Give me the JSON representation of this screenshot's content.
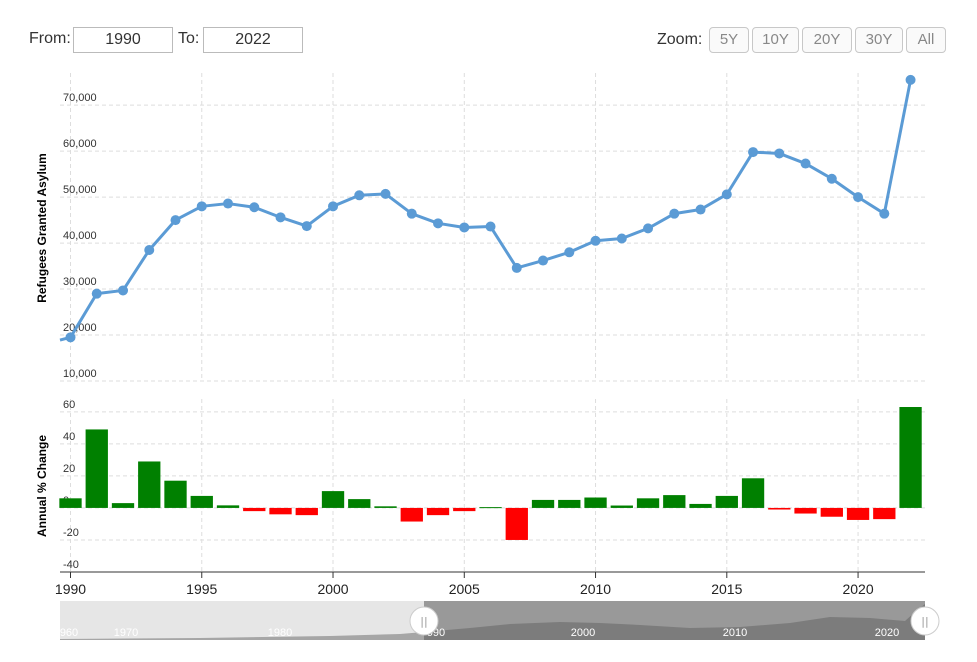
{
  "controls": {
    "from_label": "From:",
    "from_value": "1990",
    "to_label": "To:",
    "to_value": "2022",
    "zoom_label": "Zoom:",
    "zoom_buttons": [
      "5Y",
      "10Y",
      "20Y",
      "30Y",
      "All"
    ]
  },
  "colors": {
    "line": "#5b9bd5",
    "positive_bar": "#008000",
    "negative_bar": "#ff0000",
    "grid": "#dddddd"
  },
  "chart_data": [
    {
      "type": "line",
      "ylabel": "Refugees Granted Asylum",
      "y_ticks": [
        "10,000",
        "20,000",
        "30,000",
        "40,000",
        "50,000",
        "60,000",
        "70,000"
      ],
      "ylim": [
        10000,
        77000
      ],
      "x": [
        1990,
        1991,
        1992,
        1993,
        1994,
        1995,
        1996,
        1997,
        1998,
        1999,
        2000,
        2001,
        2002,
        2003,
        2004,
        2005,
        2006,
        2007,
        2008,
        2009,
        2010,
        2011,
        2012,
        2013,
        2014,
        2015,
        2016,
        2017,
        2018,
        2019,
        2020,
        2021,
        2022
      ],
      "values": [
        19500,
        29000,
        29700,
        38500,
        45000,
        48000,
        48600,
        47800,
        45600,
        43700,
        48000,
        50400,
        50700,
        46400,
        44300,
        43400,
        43600,
        34600,
        36200,
        38000,
        40500,
        41000,
        43200,
        46400,
        47300,
        50600,
        59800,
        59500,
        57300,
        54000,
        50000,
        46400,
        75500
      ],
      "grid": true
    },
    {
      "type": "bar",
      "ylabel": "Annual % Change",
      "y_ticks": [
        "-40",
        "-20",
        "0",
        "20",
        "40",
        "60"
      ],
      "ylim": [
        -40,
        68
      ],
      "x": [
        1990,
        1991,
        1992,
        1993,
        1994,
        1995,
        1996,
        1997,
        1998,
        1999,
        2000,
        2001,
        2002,
        2003,
        2004,
        2005,
        2006,
        2007,
        2008,
        2009,
        2010,
        2011,
        2012,
        2013,
        2014,
        2015,
        2016,
        2017,
        2018,
        2019,
        2020,
        2021,
        2022
      ],
      "values": [
        6,
        49,
        3,
        29,
        17,
        7.5,
        1.6,
        -2,
        -4,
        -4.5,
        10.5,
        5.5,
        1,
        -8.5,
        -4.5,
        -2,
        0.5,
        -20,
        5,
        5,
        6.5,
        1.5,
        6,
        8,
        2.5,
        7.5,
        18.5,
        -1,
        -3.5,
        -5.5,
        -7.5,
        -7,
        63
      ],
      "grid": true
    }
  ],
  "x_axis": {
    "tick_values": [
      1990,
      1995,
      2000,
      2005,
      2010,
      2015,
      2020
    ],
    "tick_labels": [
      "1990",
      "1995",
      "2000",
      "2005",
      "2010",
      "2015",
      "2020"
    ]
  },
  "navigator": {
    "tick_labels": [
      "960",
      "1970",
      "1980",
      "990",
      "2000",
      "2010",
      "2020"
    ],
    "handle_symbol": "||"
  }
}
